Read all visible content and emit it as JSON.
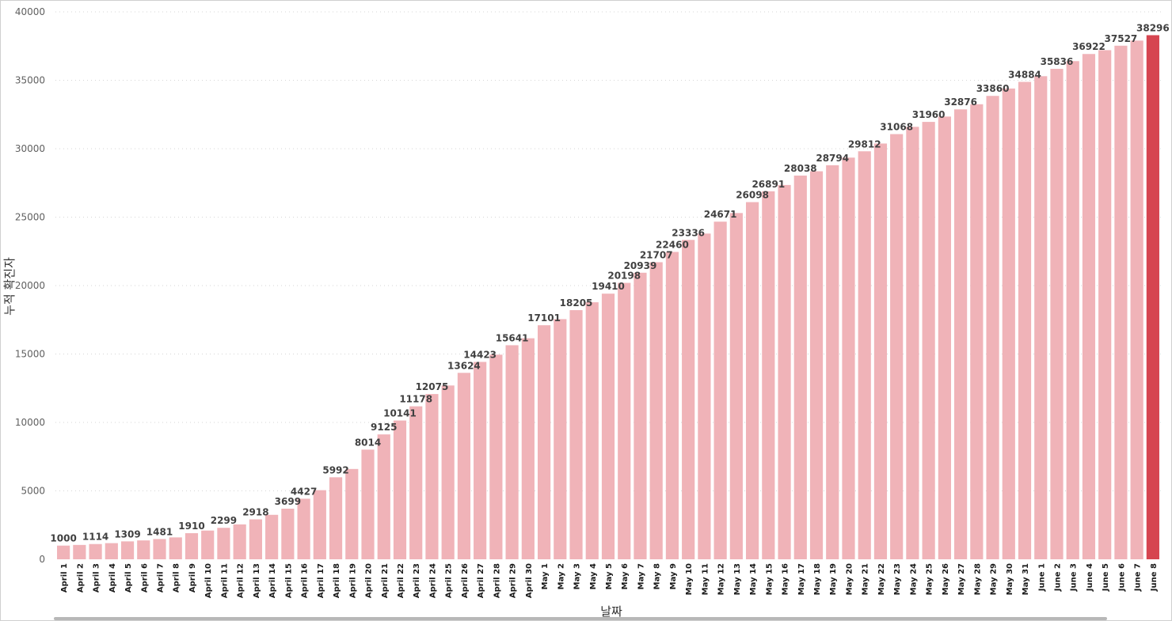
{
  "chart_data": {
    "type": "bar",
    "title": "",
    "xlabel": "날짜",
    "ylabel": "누적 확진자",
    "ylim": [
      0,
      40000
    ],
    "yticks": [
      0,
      5000,
      10000,
      15000,
      20000,
      25000,
      30000,
      35000,
      40000
    ],
    "grid": true,
    "colors": {
      "bar": "#f0b3b8",
      "highlight": "#d64550"
    },
    "highlight_index": 68,
    "categories": [
      "April 1",
      "April 2",
      "April 3",
      "April 4",
      "April 5",
      "April 6",
      "April 7",
      "April 8",
      "April 9",
      "April 10",
      "April 11",
      "April 12",
      "April 13",
      "April 14",
      "April 15",
      "April 16",
      "April 17",
      "April 18",
      "April 19",
      "April 20",
      "April 21",
      "April 22",
      "April 23",
      "April 24",
      "April 25",
      "April 26",
      "April 27",
      "April 28",
      "April 29",
      "April 30",
      "May 1",
      "May 2",
      "May 3",
      "May 4",
      "May 5",
      "May 6",
      "May 7",
      "May 8",
      "May 9",
      "May 10",
      "May 11",
      "May 12",
      "May 13",
      "May 14",
      "May 15",
      "May 16",
      "May 17",
      "May 18",
      "May 19",
      "May 20",
      "May 21",
      "May 22",
      "May 23",
      "May 24",
      "May 25",
      "May 26",
      "May 27",
      "May 28",
      "May 29",
      "May 30",
      "May 31",
      "June 1",
      "June 2",
      "June 3",
      "June 4",
      "June 5",
      "June 6",
      "June 7",
      "June 8"
    ],
    "values": [
      1000,
      1050,
      1114,
      1180,
      1309,
      1380,
      1481,
      1600,
      1910,
      2100,
      2299,
      2550,
      2918,
      3250,
      3699,
      4427,
      5050,
      5992,
      6600,
      8014,
      9125,
      10141,
      11178,
      12075,
      12700,
      13624,
      14423,
      14950,
      15641,
      16150,
      17101,
      17550,
      18205,
      18780,
      19410,
      20198,
      20939,
      21707,
      22460,
      23336,
      23800,
      24671,
      25300,
      26098,
      26891,
      27350,
      28038,
      28350,
      28794,
      29350,
      29812,
      30380,
      31068,
      31600,
      31960,
      32350,
      32876,
      33250,
      33860,
      34400,
      34884,
      35300,
      35836,
      36400,
      36922,
      37200,
      37527,
      37900,
      38296
    ],
    "data_labels": [
      "1000",
      "",
      "1114",
      "",
      "1309",
      "",
      "1481",
      "",
      "1910",
      "",
      "2299",
      "",
      "2918",
      "",
      "3699",
      "4427",
      "",
      "5992",
      "",
      "8014",
      "9125",
      "10141",
      "11178",
      "12075",
      "",
      "13624",
      "14423",
      "",
      "15641",
      "",
      "17101",
      "",
      "18205",
      "",
      "19410",
      "20198",
      "20939",
      "21707",
      "22460",
      "23336",
      "",
      "24671",
      "",
      "26098",
      "26891",
      "",
      "28038",
      "",
      "28794",
      "",
      "29812",
      "",
      "31068",
      "",
      "31960",
      "",
      "32876",
      "",
      "33860",
      "",
      "34884",
      "",
      "35836",
      "",
      "36922",
      "",
      "37527",
      "",
      "38296"
    ]
  }
}
